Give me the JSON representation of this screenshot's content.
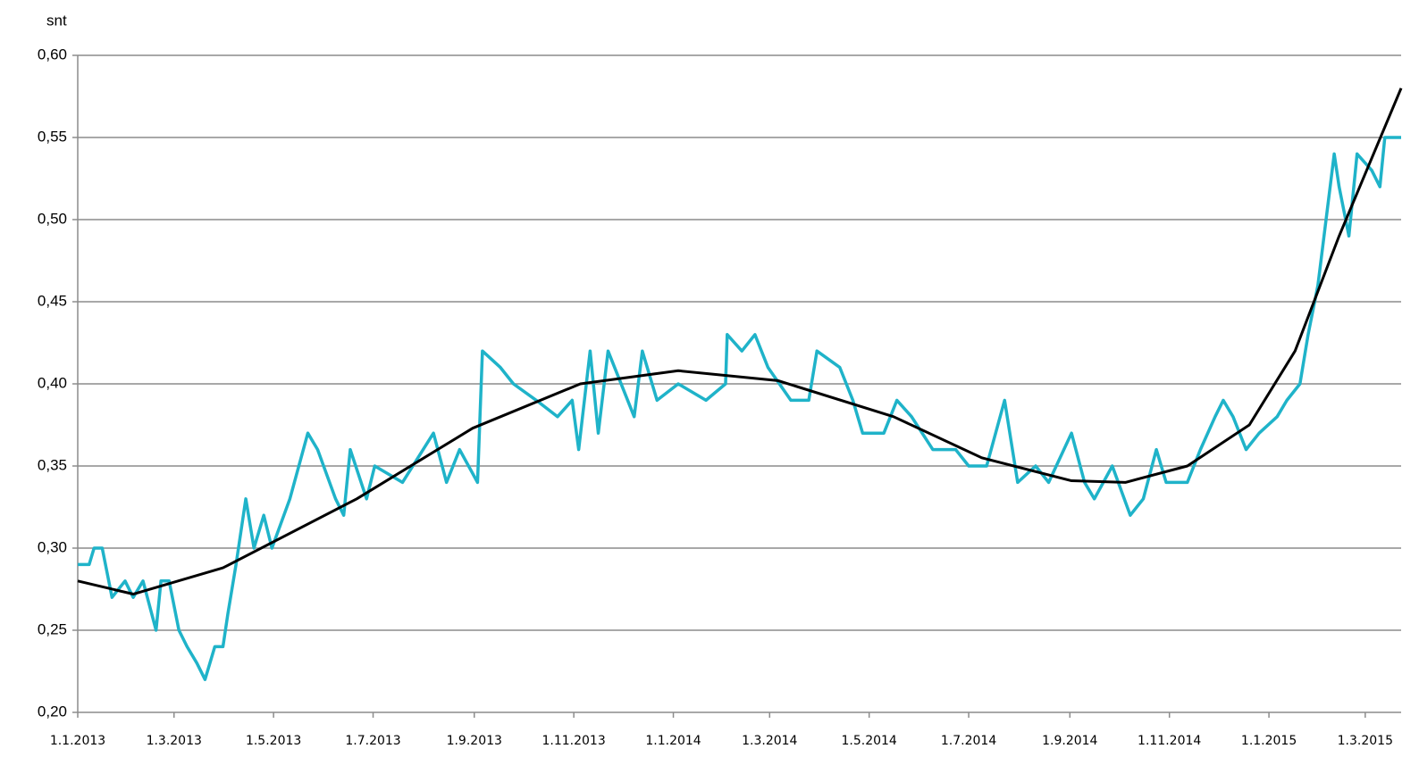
{
  "chart_data": {
    "type": "line",
    "y_label": "snt",
    "xlim": [
      "2013-01-01",
      "2015-03-23"
    ],
    "xticks": [
      {
        "value": "2013-01-01",
        "label": "1.1.2013"
      },
      {
        "value": "2013-03-01",
        "label": "1.3.2013"
      },
      {
        "value": "2013-05-01",
        "label": "1.5.2013"
      },
      {
        "value": "2013-07-01",
        "label": "1.7.2013"
      },
      {
        "value": "2013-09-01",
        "label": "1.9.2013"
      },
      {
        "value": "2013-11-01",
        "label": "1.11.2013"
      },
      {
        "value": "2014-01-01",
        "label": "1.1.2014"
      },
      {
        "value": "2014-03-01",
        "label": "1.3.2014"
      },
      {
        "value": "2014-05-01",
        "label": "1.5.2014"
      },
      {
        "value": "2014-07-01",
        "label": "1.7.2014"
      },
      {
        "value": "2014-09-01",
        "label": "1.9.2014"
      },
      {
        "value": "2014-11-01",
        "label": "1.11.2014"
      },
      {
        "value": "2015-01-01",
        "label": "1.1.2015"
      },
      {
        "value": "2015-03-01",
        "label": "1.3.2015"
      }
    ],
    "ylim": [
      0.2,
      0.6
    ],
    "yticks": [
      {
        "value": 0.2,
        "label": "0,20"
      },
      {
        "value": 0.25,
        "label": "0,25"
      },
      {
        "value": 0.3,
        "label": "0,30"
      },
      {
        "value": 0.35,
        "label": "0,35"
      },
      {
        "value": 0.4,
        "label": "0,40"
      },
      {
        "value": 0.45,
        "label": "0,45"
      },
      {
        "value": 0.5,
        "label": "0,50"
      },
      {
        "value": 0.55,
        "label": "0,55"
      },
      {
        "value": 0.6,
        "label": "0,60"
      }
    ],
    "grid": true,
    "series": [
      {
        "color": "#1fb3c9",
        "x": [
          "2013-01-01",
          "2013-01-08",
          "2013-01-11",
          "2013-01-16",
          "2013-01-22",
          "2013-01-30",
          "2013-02-04",
          "2013-02-10",
          "2013-02-18",
          "2013-02-21",
          "2013-02-26",
          "2013-03-04",
          "2013-03-09",
          "2013-03-15",
          "2013-03-20",
          "2013-03-26",
          "2013-03-31",
          "2013-04-03",
          "2013-04-08",
          "2013-04-14",
          "2013-04-19",
          "2013-04-25",
          "2013-04-30",
          "2013-05-11",
          "2013-05-22",
          "2013-05-28",
          "2013-06-08",
          "2013-06-13",
          "2013-06-17",
          "2013-06-27",
          "2013-07-02",
          "2013-07-19",
          "2013-08-07",
          "2013-08-15",
          "2013-08-23",
          "2013-09-03",
          "2013-09-06",
          "2013-09-17",
          "2013-09-25",
          "2013-10-09",
          "2013-10-22",
          "2013-10-31",
          "2013-11-04",
          "2013-11-11",
          "2013-11-16",
          "2013-11-22",
          "2013-12-08",
          "2013-12-13",
          "2013-12-22",
          "2014-01-04",
          "2014-01-21",
          "2014-02-02",
          "2014-02-03",
          "2014-02-12",
          "2014-02-20",
          "2014-02-28",
          "2014-03-14",
          "2014-03-25",
          "2014-03-30",
          "2014-04-13",
          "2014-04-21",
          "2014-04-27",
          "2014-05-10",
          "2014-05-18",
          "2014-05-27",
          "2014-06-09",
          "2014-06-23",
          "2014-07-01",
          "2014-07-12",
          "2014-07-23",
          "2014-07-31",
          "2014-08-11",
          "2014-08-19",
          "2014-09-02",
          "2014-09-10",
          "2014-09-16",
          "2014-09-27",
          "2014-10-08",
          "2014-10-16",
          "2014-10-24",
          "2014-10-30",
          "2014-11-12",
          "2014-11-20",
          "2014-11-29",
          "2014-12-04",
          "2014-12-10",
          "2014-12-18",
          "2014-12-26",
          "2015-01-06",
          "2015-01-12",
          "2015-01-20",
          "2015-01-25",
          "2015-01-31",
          "2015-02-05",
          "2015-02-10",
          "2015-02-13",
          "2015-02-19",
          "2015-02-24",
          "2015-03-05",
          "2015-03-10",
          "2015-03-13",
          "2015-03-23"
        ],
        "values": [
          0.29,
          0.29,
          0.3,
          0.3,
          0.27,
          0.28,
          0.27,
          0.28,
          0.25,
          0.28,
          0.28,
          0.25,
          0.24,
          0.23,
          0.22,
          0.24,
          0.24,
          0.26,
          0.29,
          0.33,
          0.3,
          0.32,
          0.3,
          0.33,
          0.37,
          0.36,
          0.33,
          0.32,
          0.36,
          0.33,
          0.35,
          0.34,
          0.37,
          0.34,
          0.36,
          0.34,
          0.42,
          0.41,
          0.4,
          0.39,
          0.38,
          0.39,
          0.36,
          0.42,
          0.37,
          0.42,
          0.38,
          0.42,
          0.39,
          0.4,
          0.39,
          0.4,
          0.43,
          0.42,
          0.43,
          0.41,
          0.39,
          0.39,
          0.42,
          0.41,
          0.39,
          0.37,
          0.37,
          0.39,
          0.38,
          0.36,
          0.36,
          0.35,
          0.35,
          0.39,
          0.34,
          0.35,
          0.34,
          0.37,
          0.34,
          0.33,
          0.35,
          0.32,
          0.33,
          0.36,
          0.34,
          0.34,
          0.36,
          0.38,
          0.39,
          0.38,
          0.36,
          0.37,
          0.38,
          0.39,
          0.4,
          0.43,
          0.46,
          0.5,
          0.54,
          0.52,
          0.49,
          0.54,
          0.53,
          0.52,
          0.55,
          0.55
        ]
      },
      {
        "color": "#000000",
        "x": [
          "2013-01-01",
          "2013-02-04",
          "2013-03-31",
          "2013-06-21",
          "2013-08-31",
          "2013-11-05",
          "2014-01-04",
          "2014-03-06",
          "2014-05-16",
          "2014-07-09",
          "2014-09-02",
          "2014-10-05",
          "2014-11-12",
          "2014-12-20",
          "2015-01-17",
          "2015-02-13",
          "2015-03-23"
        ],
        "values": [
          0.28,
          0.272,
          0.288,
          0.33,
          0.373,
          0.4,
          0.408,
          0.402,
          0.38,
          0.355,
          0.341,
          0.34,
          0.35,
          0.375,
          0.42,
          0.49,
          0.58
        ]
      }
    ]
  }
}
